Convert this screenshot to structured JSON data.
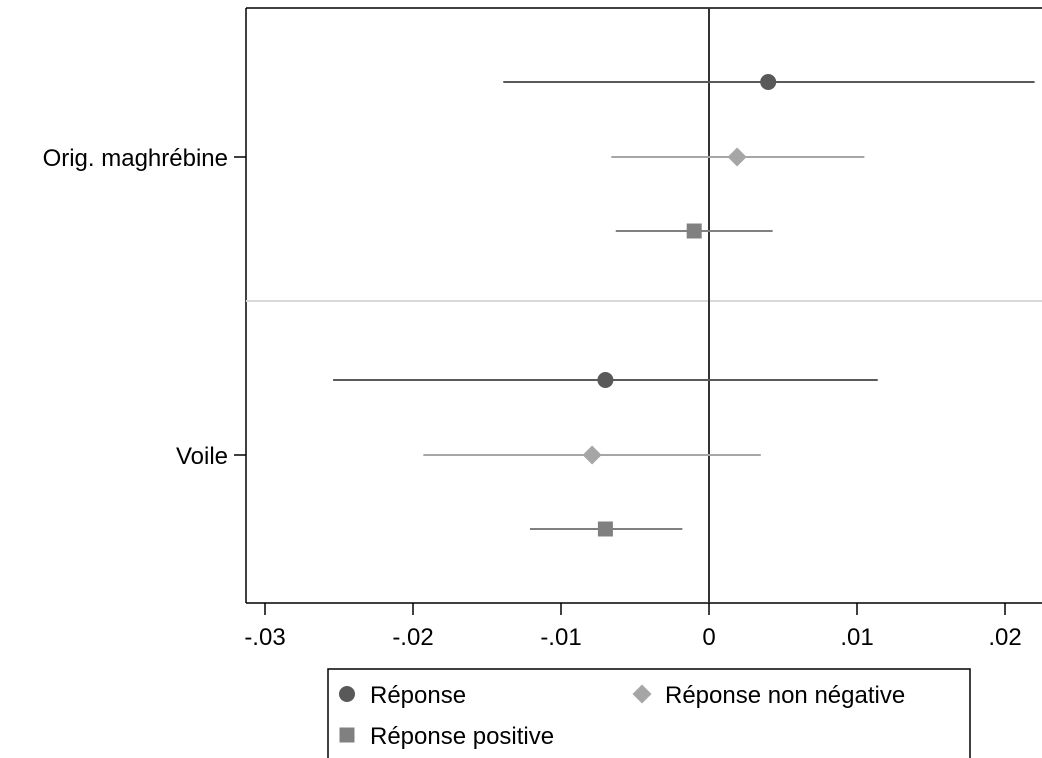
{
  "chart_data": {
    "type": "scatter",
    "title": "",
    "xlabel": "",
    "ylabel": "",
    "xlim": [
      -0.031,
      0.0225
    ],
    "zero_line": 0,
    "x_ticks": [
      {
        "value": -0.03,
        "label": "-.03"
      },
      {
        "value": -0.02,
        "label": "-.02"
      },
      {
        "value": -0.01,
        "label": "-.01"
      },
      {
        "value": 0,
        "label": "0"
      },
      {
        "value": 0.01,
        "label": ".01"
      },
      {
        "value": 0.02,
        "label": ".02"
      }
    ],
    "categories": [
      "Orig. maghrébine",
      "Voile"
    ],
    "series": [
      {
        "name": "Réponse",
        "marker": "circle",
        "color": "#595959",
        "estimates": [
          0.004,
          -0.007
        ],
        "ci_low": [
          -0.0139,
          -0.0254
        ],
        "ci_high": [
          0.022,
          0.0114
        ]
      },
      {
        "name": "Réponse non négative",
        "marker": "diamond",
        "color": "#a6a6a6",
        "estimates": [
          0.0019,
          -0.0079
        ],
        "ci_low": [
          -0.0066,
          -0.0193
        ],
        "ci_high": [
          0.0105,
          0.0035
        ]
      },
      {
        "name": "Réponse positive",
        "marker": "square",
        "color": "#808080",
        "estimates": [
          -0.001,
          -0.007
        ],
        "ci_low": [
          -0.0063,
          -0.0121
        ],
        "ci_high": [
          0.0043,
          -0.0018
        ]
      }
    ],
    "grid": false,
    "legend_position": "bottom"
  }
}
